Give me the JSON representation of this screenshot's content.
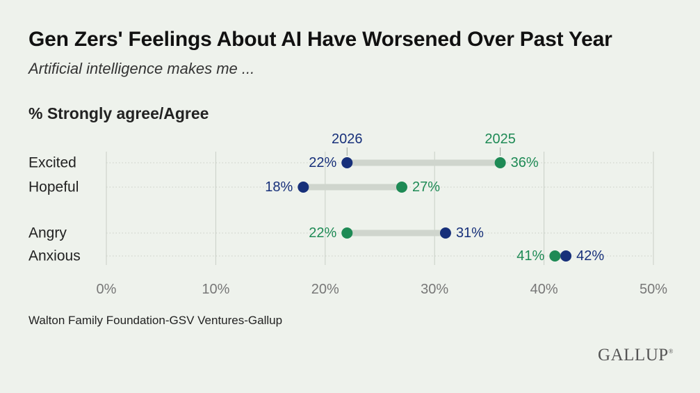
{
  "title": "Gen Zers' Feelings About AI Have Worsened Over Past Year",
  "subtitle": "Artificial intelligence makes me ...",
  "measure_label": "% Strongly agree/Agree",
  "source": "Walton Family Foundation-GSV Ventures-Gallup",
  "logo": "GALLUP",
  "colors": {
    "series_2026": "#17307a",
    "series_2025": "#1e8a55",
    "connector": "#cfd5cd",
    "grid": "#c9cfc6",
    "axis_text": "#777777"
  },
  "chart_data": {
    "type": "dumbbell",
    "categories": [
      "Excited",
      "Hopeful",
      "Angry",
      "Anxious"
    ],
    "series": [
      {
        "name": "2026",
        "values": [
          22,
          18,
          31,
          42
        ]
      },
      {
        "name": "2025",
        "values": [
          36,
          27,
          22,
          41
        ]
      }
    ],
    "xlim": [
      0,
      50
    ],
    "x_ticks": [
      0,
      10,
      20,
      30,
      40,
      50
    ],
    "x_tick_labels": [
      "0%",
      "10%",
      "20%",
      "30%",
      "40%",
      "50%"
    ],
    "value_suffix": "%",
    "grid": true,
    "series_labels_on_top_row": true
  }
}
